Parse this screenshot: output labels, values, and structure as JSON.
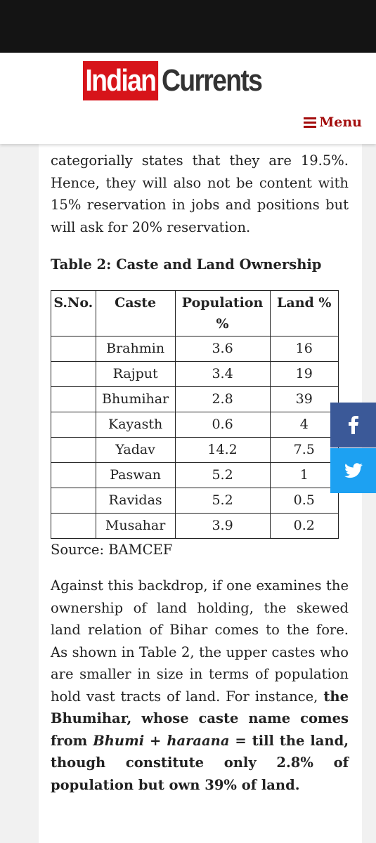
{
  "header": {
    "logo_left": "Indian",
    "logo_right": "Currents",
    "menu": "Menu"
  },
  "article": {
    "paragraph_1": "categorially states that they are 19.5%. Hence, they will also not be content with 15% reservation in jobs and positions but will ask for 20% reservation.",
    "table_title": "Table 2: Caste and Land Ownership",
    "table": {
      "headers": [
        "S.No.",
        "Caste",
        "Population %",
        "Land %"
      ],
      "rows": [
        {
          "caste": "Brahmin",
          "population": 3.6,
          "land": 16
        },
        {
          "caste": "Rajput",
          "population": 3.4,
          "land": 19
        },
        {
          "caste": "Bhumihar",
          "population": 2.8,
          "land": 39
        },
        {
          "caste": "Kayasth",
          "population": 0.6,
          "land": 4
        },
        {
          "caste": "Yadav",
          "population": 14.2,
          "land": 7.5
        },
        {
          "caste": "Paswan",
          "population": 5.2,
          "land": 1
        },
        {
          "caste": "Ravidas",
          "population": 5.2,
          "land": 0.5
        },
        {
          "caste": "Musahar",
          "population": 3.9,
          "land": 0.2
        }
      ]
    },
    "source": "Source: BAMCEF",
    "paragraph_2": [
      {
        "text": "Against this backdrop, if one examines the ownership of land holding, the skewed land relation of Bihar comes to the fore. As shown in Table 2, the upper castes who are smaller in size in terms of population hold vast tracts of land. For instance, ",
        "style": "normal"
      },
      {
        "text": "the Bhumihar, whose caste name comes from ",
        "style": "bold"
      },
      {
        "text": "Bhumi",
        "style": "bold-italic"
      },
      {
        "text": " + ",
        "style": "bold"
      },
      {
        "text": "haraana",
        "style": "bold-italic"
      },
      {
        "text": " = till the land, though constitute only 2.8% of population but own 39% of land.",
        "style": "bold"
      }
    ]
  }
}
